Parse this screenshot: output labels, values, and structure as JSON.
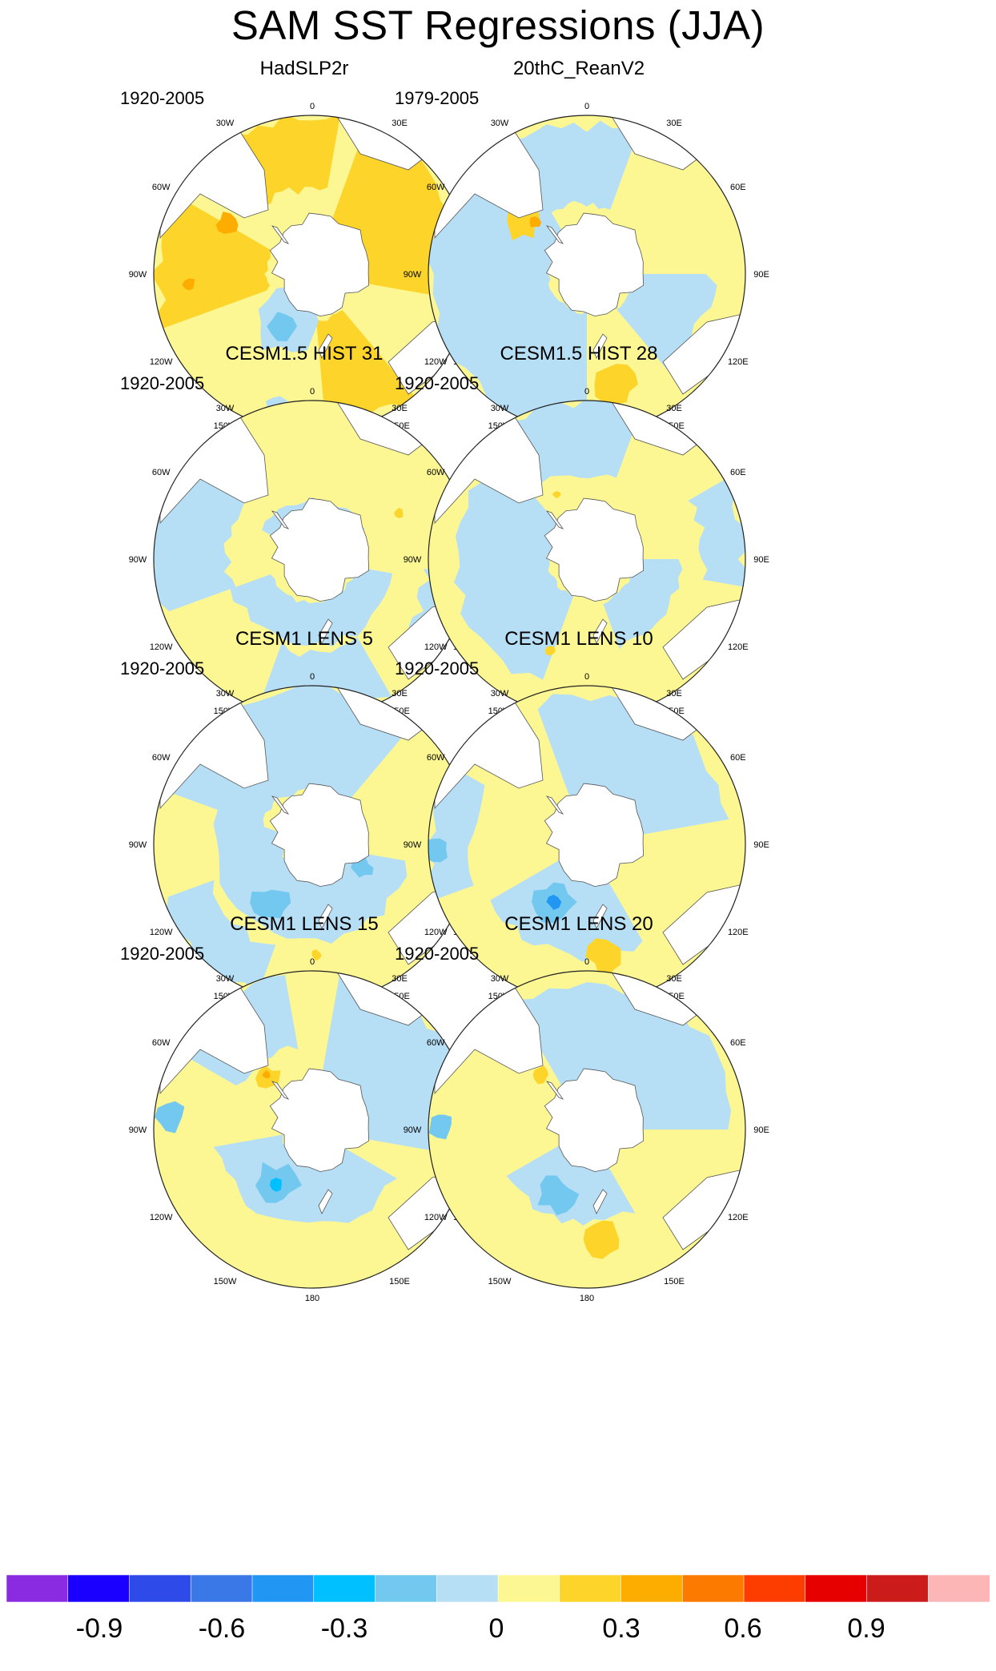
{
  "title": "SAM SST Regressions (JJA)",
  "panels": [
    {
      "title": "HadSLP2r",
      "period": "1920-2005",
      "palette": "warm"
    },
    {
      "title": "20thC_ReanV2",
      "period": "1979-2005",
      "palette": "mixed"
    },
    {
      "title": "CESM1.5 HIST 31",
      "period": "1920-2005",
      "palette": "cool"
    },
    {
      "title": "CESM1.5 HIST 28",
      "period": "1920-2005",
      "palette": "cool"
    },
    {
      "title": "CESM1 LENS 5",
      "period": "1920-2005",
      "palette": "cool"
    },
    {
      "title": "CESM1 LENS 10",
      "period": "1920-2005",
      "palette": "cool"
    },
    {
      "title": "CESM1 LENS 15",
      "period": "1920-2005",
      "palette": "cool"
    },
    {
      "title": "CESM1 LENS 20",
      "period": "1920-2005",
      "palette": "cool"
    }
  ],
  "longitude_labels": [
    "0",
    "30E",
    "60E",
    "90E",
    "120E",
    "150E",
    "180",
    "150W",
    "120W",
    "90W",
    "60W",
    "30W"
  ],
  "colorbar": {
    "colors": [
      "#8a2be2",
      "#1a00ff",
      "#2e4ae8",
      "#3a78e8",
      "#2196f3",
      "#00c0ff",
      "#73c8f0",
      "#b6def5",
      "#fdf793",
      "#fdd42a",
      "#fdac00",
      "#fd7a00",
      "#fd3c00",
      "#e60000",
      "#cc1b1b",
      "#fdb6b6"
    ],
    "tick_labels": [
      "-0.9",
      "-0.6",
      "-0.3",
      "0",
      "0.3",
      "0.6",
      "0.9"
    ]
  }
}
